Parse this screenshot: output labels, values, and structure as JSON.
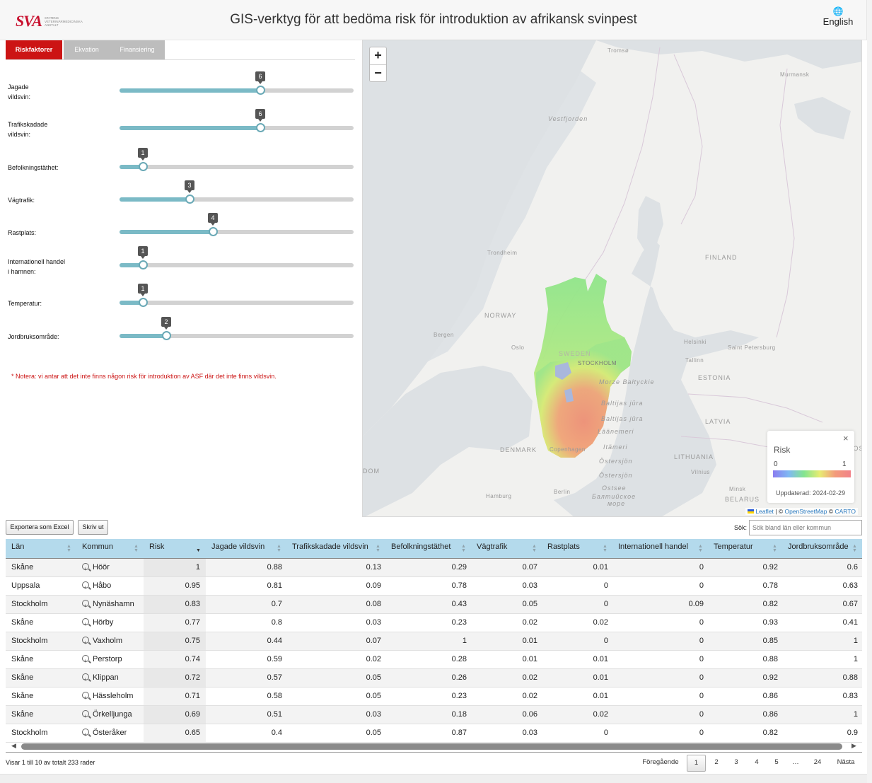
{
  "header": {
    "logo_text": "SVA",
    "logo_subtitle": "STATENS VETERINÄRMEDICINSKA ANSTALT",
    "title": "GIS-verktyg för att bedöma risk för introduktion av afrikansk svinpest",
    "language_label": "English",
    "language_icon": "globe-icon"
  },
  "tabs": [
    {
      "label": "Riskfaktorer",
      "active": true
    },
    {
      "label": "Ekvation",
      "active": false
    },
    {
      "label": "Finansiering",
      "active": false
    }
  ],
  "sliders": [
    {
      "label_line1": "Jagade",
      "label_line2": "vildsvin:",
      "value": 6,
      "min": 0,
      "max": 10
    },
    {
      "label_line1": "Trafikskadade",
      "label_line2": "vildsvin:",
      "value": 6,
      "min": 0,
      "max": 10
    },
    {
      "label_line1": "Befolkningstäthet:",
      "label_line2": "",
      "value": 1,
      "min": 0,
      "max": 10
    },
    {
      "label_line1": "Vägtrafik:",
      "label_line2": "",
      "value": 3,
      "min": 0,
      "max": 10
    },
    {
      "label_line1": "Rastplats:",
      "label_line2": "",
      "value": 4,
      "min": 0,
      "max": 10
    },
    {
      "label_line1": "Internationell handel",
      "label_line2": "i hamnen:",
      "value": 1,
      "min": 0,
      "max": 10
    },
    {
      "label_line1": "Temperatur:",
      "label_line2": "",
      "value": 1,
      "min": 0,
      "max": 10
    },
    {
      "label_line1": "Jordbruksområde:",
      "label_line2": "",
      "value": 2,
      "min": 0,
      "max": 10
    }
  ],
  "note": "* Notera: vi antar att det inte finns någon risk för introduktion av ASF där det inte finns vildsvin.",
  "map": {
    "zoom_in": "+",
    "zoom_out": "−",
    "labels": [
      "Tromsø",
      "Murmansk",
      "Vestfjorden",
      "Trondheim",
      "NORWAY",
      "FINLAND",
      "Bergen",
      "Oslo",
      "SWEDEN",
      "STOCKHOLM",
      "Helsinki",
      "Saint Petersburg",
      "Tallinn",
      "ESTONIA",
      "Morze Bałtyckie",
      "Baltijas jūra",
      "Baltijas jūra",
      "Läänemeri",
      "DENMARK",
      "Copenhagen",
      "Itämeri",
      "Östersjön",
      "LATVIA",
      "LITHUANIA",
      "Vilnius",
      "Östersjön",
      "Ostsee",
      "Балтийское",
      "море",
      "Minsk",
      "BELARUS",
      "Hamburg",
      "Berlin",
      "DOM",
      "MOSC"
    ],
    "legend": {
      "title": "Risk",
      "close": "×",
      "min": "0",
      "max": "1",
      "updated": "Uppdaterad: 2024-02-29",
      "gradient_colors": [
        "#8a7cf0",
        "#7fb8f3",
        "#84e58f",
        "#e7ec72",
        "#f39b7b",
        "#f28289"
      ]
    },
    "attribution": {
      "leaflet": "Leaflet",
      "sep1": " | © ",
      "osm": "OpenStreetMap",
      "sep2": " © ",
      "carto": "CARTO"
    }
  },
  "table_controls": {
    "export_label": "Exportera som Excel",
    "print_label": "Skriv ut",
    "search_label": "Sök:",
    "search_placeholder": "Sök bland län eller kommun"
  },
  "table": {
    "columns": [
      "Län",
      "Kommun",
      "Risk",
      "Jagade vildsvin",
      "Trafikskadade vildsvin",
      "Befolkningstäthet",
      "Vägtrafik",
      "Rastplats",
      "Internationell handel",
      "Temperatur",
      "Jordbruksområde"
    ],
    "sorted_column": "Risk",
    "rows": [
      [
        "Skåne",
        "Höör",
        "1",
        "0.88",
        "0.13",
        "0.29",
        "0.07",
        "0.01",
        "0",
        "0.92",
        "0.6"
      ],
      [
        "Uppsala",
        "Håbo",
        "0.95",
        "0.81",
        "0.09",
        "0.78",
        "0.03",
        "0",
        "0",
        "0.78",
        "0.63"
      ],
      [
        "Stockholm",
        "Nynäshamn",
        "0.83",
        "0.7",
        "0.08",
        "0.43",
        "0.05",
        "0",
        "0.09",
        "0.82",
        "0.67"
      ],
      [
        "Skåne",
        "Hörby",
        "0.77",
        "0.8",
        "0.03",
        "0.23",
        "0.02",
        "0.02",
        "0",
        "0.93",
        "0.41"
      ],
      [
        "Stockholm",
        "Vaxholm",
        "0.75",
        "0.44",
        "0.07",
        "1",
        "0.01",
        "0",
        "0",
        "0.85",
        "1"
      ],
      [
        "Skåne",
        "Perstorp",
        "0.74",
        "0.59",
        "0.02",
        "0.28",
        "0.01",
        "0.01",
        "0",
        "0.88",
        "1"
      ],
      [
        "Skåne",
        "Klippan",
        "0.72",
        "0.57",
        "0.05",
        "0.26",
        "0.02",
        "0.01",
        "0",
        "0.92",
        "0.88"
      ],
      [
        "Skåne",
        "Hässleholm",
        "0.71",
        "0.58",
        "0.05",
        "0.23",
        "0.02",
        "0.01",
        "0",
        "0.86",
        "0.83"
      ],
      [
        "Skåne",
        "Örkelljunga",
        "0.69",
        "0.51",
        "0.03",
        "0.18",
        "0.06",
        "0.02",
        "0",
        "0.86",
        "1"
      ],
      [
        "Stockholm",
        "Österåker",
        "0.65",
        "0.4",
        "0.05",
        "0.87",
        "0.03",
        "0",
        "0",
        "0.82",
        "0.9"
      ]
    ]
  },
  "table_info": "Visar 1 till 10 av totalt 233 rader",
  "pagination": {
    "previous": "Föregående",
    "pages": [
      "1",
      "2",
      "3",
      "4",
      "5",
      "…",
      "24"
    ],
    "current": "1",
    "next": "Nästa"
  }
}
